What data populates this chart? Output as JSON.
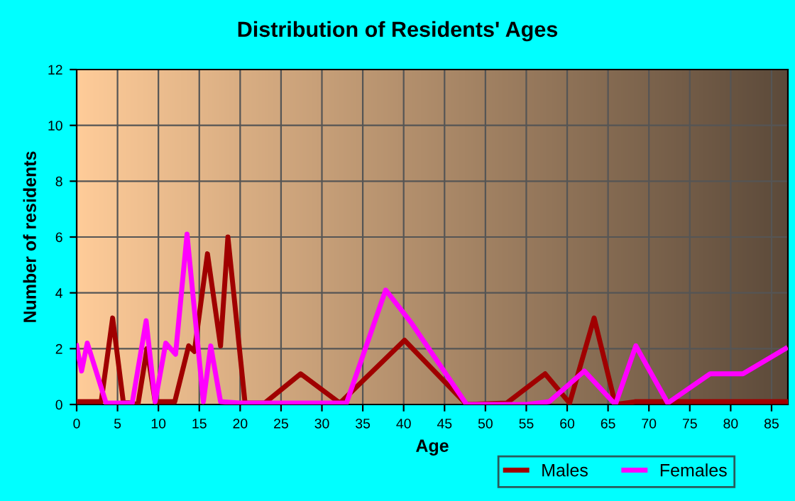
{
  "chart_data": {
    "type": "line",
    "title": "Distribution of Residents' Ages",
    "xlabel": "Age",
    "ylabel": "Number of residents",
    "xlim": [
      0,
      87
    ],
    "ylim": [
      0,
      12
    ],
    "xticks": [
      0,
      5,
      10,
      15,
      20,
      25,
      30,
      35,
      40,
      45,
      50,
      55,
      60,
      65,
      70,
      75,
      80,
      85
    ],
    "yticks": [
      0,
      2,
      4,
      6,
      8,
      10,
      12
    ],
    "grid": true,
    "legend": "bottom right",
    "marker": "none",
    "line_style": "solid",
    "series": [
      {
        "name": "Males",
        "color": "#a00000",
        "x": [
          0,
          2,
          3,
          4.4,
          5.7,
          7.5,
          8.6,
          9.6,
          12,
          13.7,
          14.4,
          16,
          17.6,
          18.5,
          20.6,
          23,
          27.4,
          32.2,
          40.1,
          47.7,
          52.6,
          57.3,
          60.3,
          63.3,
          65.9,
          68.3,
          87
        ],
        "values": [
          0.1,
          0.1,
          0.1,
          3.1,
          0.1,
          0,
          2.0,
          0.1,
          0.1,
          2.1,
          1.9,
          5.4,
          2.1,
          6.0,
          0.05,
          0.05,
          1.1,
          0.05,
          2.3,
          0,
          0.05,
          1.1,
          0.05,
          3.1,
          0,
          0.1,
          0.1
        ]
      },
      {
        "name": "Females",
        "color": "#ff00ff",
        "x": [
          0,
          0.6,
          1.3,
          3.6,
          6.8,
          8.5,
          9.6,
          10.9,
          12.1,
          13.5,
          15.5,
          16.4,
          17.6,
          20,
          33,
          37.8,
          41,
          47.7,
          55,
          57.8,
          62.1,
          65.9,
          68.4,
          72.3,
          77.5,
          81.5,
          86.7
        ],
        "values": [
          2.1,
          1.2,
          2.2,
          0.05,
          0.05,
          3.0,
          0.1,
          2.2,
          1.8,
          6.1,
          0.1,
          2.1,
          0.1,
          0.05,
          0.05,
          4.1,
          2.9,
          0,
          0,
          0.1,
          1.2,
          0,
          2.1,
          0.05,
          1.1,
          1.1,
          2.0
        ]
      }
    ]
  }
}
